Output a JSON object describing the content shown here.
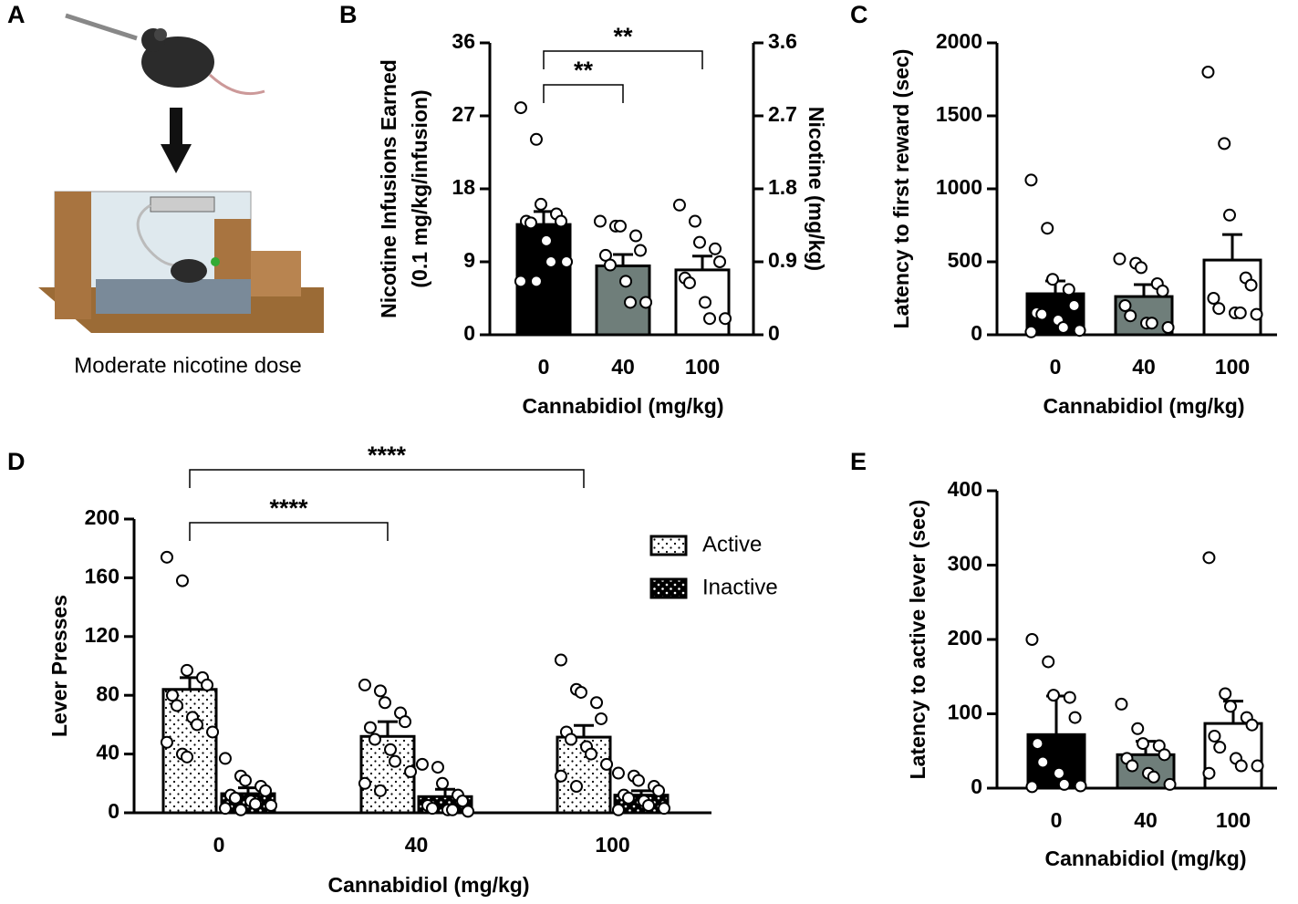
{
  "illustration": {
    "label": "A",
    "caption": "Moderate nicotine dose"
  },
  "chart_data": [
    {
      "type": "bar",
      "panel_label": "B",
      "ylabel": [
        "Nicotine Infusions Earned",
        "(0.1 mg/kg/infusion)"
      ],
      "y2label": "Nicotine (mg/kg)",
      "xlabel": "Cannabidiol (mg/kg)",
      "categories": [
        "0",
        "40",
        "100"
      ],
      "colors": [
        "#000000",
        "#6f7e7a",
        "#ffffff"
      ],
      "series": [
        {
          "values": [
            13.6,
            8.5,
            8.0
          ],
          "errors": [
            1.6,
            1.4,
            1.7
          ],
          "points": [
            [
              28,
              24.1,
              16.1,
              14.9,
              14,
              14,
              13.8,
              11.6,
              9,
              9,
              6.6,
              6.6
            ],
            [
              14,
              13.4,
              13.4,
              12.2,
              10.4,
              9.8,
              8.6,
              6.6,
              4,
              4
            ],
            [
              16,
              14,
              11.4,
              10.6,
              9,
              7,
              6.4,
              4,
              2,
              2
            ]
          ]
        }
      ],
      "ylim": [
        0,
        36
      ],
      "yticks": [
        0,
        9,
        18,
        27,
        36
      ],
      "y2lim": [
        0,
        3.6
      ],
      "y2ticks": [
        0,
        0.9,
        1.8,
        2.7,
        3.6
      ],
      "annotations": [
        {
          "text": "**",
          "from": 0,
          "to": 1
        },
        {
          "text": "**",
          "from": 0,
          "to": 2
        }
      ]
    },
    {
      "type": "bar",
      "panel_label": "C",
      "ylabel": [
        "Latency to first reward (sec)"
      ],
      "xlabel": "Cannabidiol (mg/kg)",
      "categories": [
        "0",
        "40",
        "100"
      ],
      "colors": [
        "#000000",
        "#6f7e7a",
        "#ffffff"
      ],
      "series": [
        {
          "values": [
            281,
            262,
            512
          ],
          "errors": [
            88,
            82,
            175
          ],
          "points": [
            [
              1060,
              730,
              380,
              310,
              200,
              150,
              140,
              100,
              50,
              30,
              20
            ],
            [
              520,
              490,
              460,
              350,
              300,
              200,
              130,
              80,
              80,
              50
            ],
            [
              1800,
              1310,
              820,
              390,
              340,
              250,
              180,
              150,
              150,
              140
            ]
          ]
        }
      ],
      "ylim": [
        0,
        2000
      ],
      "yticks": [
        0,
        500,
        1000,
        1500,
        2000
      ]
    },
    {
      "type": "bar",
      "panel_label": "D",
      "ylabel": [
        "Lever Presses"
      ],
      "xlabel": "Cannabidiol (mg/kg)",
      "categories": [
        "0",
        "40",
        "100"
      ],
      "series": [
        {
          "name": "Active",
          "color": "#ffffff",
          "values": [
            84,
            52,
            51.5
          ],
          "errors": [
            8,
            10,
            8
          ],
          "points": [
            [
              174,
              158,
              97,
              92,
              87,
              80,
              73,
              65,
              60,
              55,
              48,
              40,
              38
            ],
            [
              87,
              83,
              75,
              68,
              62,
              58,
              50,
              43,
              35,
              28,
              20,
              15
            ],
            [
              104,
              84,
              82,
              75,
              64,
              55,
              50,
              45,
              40,
              33,
              25,
              18
            ]
          ]
        },
        {
          "name": "Inactive",
          "color": "#000000",
          "values": [
            13,
            11,
            12
          ],
          "errors": [
            4,
            5,
            3
          ],
          "points": [
            [
              37,
              25,
              22,
              18,
              15,
              12,
              10,
              8,
              6,
              5,
              3,
              2
            ],
            [
              33,
              31,
              20,
              12,
              8,
              5,
              3,
              2,
              2,
              1
            ],
            [
              27,
              25,
              22,
              18,
              15,
              12,
              10,
              8,
              5,
              3,
              2
            ]
          ]
        }
      ],
      "ylim": [
        0,
        200
      ],
      "yticks": [
        0,
        40,
        80,
        120,
        160,
        200
      ],
      "annotations": [
        {
          "text": "****",
          "from": 0,
          "to": 1
        },
        {
          "text": "****",
          "from": 0,
          "to": 2
        }
      ]
    },
    {
      "type": "bar",
      "panel_label": "E",
      "ylabel": [
        "Latency to active lever (sec)"
      ],
      "xlabel": "Cannabidiol (mg/kg)",
      "categories": [
        "0",
        "40",
        "100"
      ],
      "colors": [
        "#000000",
        "#6f7e7a",
        "#ffffff"
      ],
      "series": [
        {
          "values": [
            72,
            45,
            87
          ],
          "errors": [
            52,
            18,
            30
          ],
          "points": [
            [
              200,
              170,
              125,
              122,
              95,
              60,
              35,
              20,
              5,
              3,
              2
            ],
            [
              113,
              80,
              60,
              57,
              45,
              40,
              30,
              20,
              15,
              5
            ],
            [
              310,
              127,
              110,
              95,
              85,
              70,
              55,
              40,
              30,
              30,
              20
            ]
          ]
        }
      ],
      "ylim": [
        0,
        400
      ],
      "yticks": [
        0,
        100,
        200,
        300,
        400
      ]
    }
  ]
}
